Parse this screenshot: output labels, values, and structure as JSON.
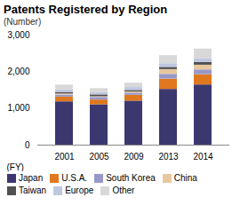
{
  "chart_data": {
    "type": "bar",
    "stacked": true,
    "title": "Patents Registered by Region",
    "ylabel": "(Number)",
    "xlabel": "(FY)",
    "categories": [
      "2001",
      "2005",
      "2009",
      "2013",
      "2014"
    ],
    "series": [
      {
        "name": "Japan",
        "color": "#3b3870",
        "values": [
          1180,
          1100,
          1200,
          1520,
          1640
        ]
      },
      {
        "name": "U.S.A.",
        "color": "#e07820",
        "values": [
          130,
          130,
          160,
          280,
          280
        ]
      },
      {
        "name": "South Korea",
        "color": "#9898c8",
        "values": [
          55,
          70,
          60,
          130,
          130
        ]
      },
      {
        "name": "China",
        "color": "#e8c8a0",
        "values": [
          30,
          20,
          30,
          130,
          130
        ]
      },
      {
        "name": "Taiwan",
        "color": "#505050",
        "values": [
          40,
          50,
          40,
          60,
          70
        ]
      },
      {
        "name": "Europe",
        "color": "#c0c8e0",
        "values": [
          70,
          60,
          80,
          100,
          100
        ]
      },
      {
        "name": "Other",
        "color": "#d8d8d8",
        "values": [
          130,
          110,
          120,
          220,
          270
        ]
      }
    ],
    "ylim": [
      0,
      3000
    ],
    "yticks": [
      0,
      {
        "value": 1000,
        "label": "1,000"
      },
      {
        "value": 2000,
        "label": "2,000"
      },
      {
        "value": 3000,
        "label": "3,000"
      }
    ],
    "grid": false,
    "legend": "bottom"
  }
}
